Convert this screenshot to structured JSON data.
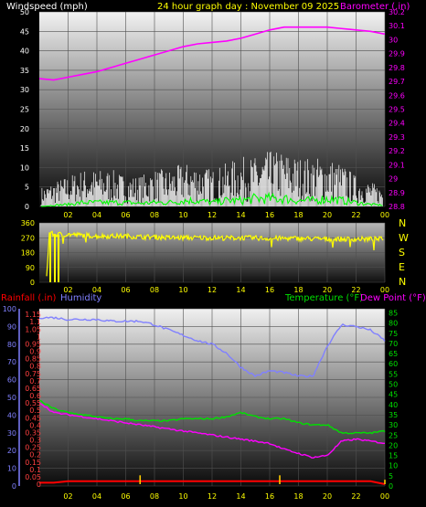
{
  "colors": {
    "windspeed": "#ffffff",
    "gust": "#00ff00",
    "barometer": "#ff00ff",
    "wind_dir": "#ffff00",
    "humidity": "#8080ff",
    "temperature": "#00e000",
    "dewpoint": "#ff00ff",
    "rainfall": "#ff0000",
    "rain_rate": "#ffcc00",
    "title": "#ffff00"
  },
  "title": "24 hour graph day : November 09 2025",
  "xticks": [
    "02",
    "04",
    "06",
    "08",
    "10",
    "12",
    "14",
    "16",
    "18",
    "20",
    "22",
    "00"
  ],
  "chart_data": [
    {
      "type": "line",
      "left_label": "Windspeed (mph)",
      "right_label": "Barometer (.in)",
      "left_ticks": [
        "0",
        "5",
        "10",
        "15",
        "20",
        "25",
        "30",
        "35",
        "40",
        "45",
        "50"
      ],
      "right_ticks": [
        "28.8",
        "28.9",
        "29",
        "29.1",
        "29.2",
        "29.3",
        "29.4",
        "29.5",
        "29.6",
        "29.7",
        "29.8",
        "29.9",
        "30",
        "30.1",
        "30.2"
      ],
      "left_ylim": [
        0,
        50
      ],
      "right_ylim": [
        28.8,
        30.2
      ],
      "series": [
        {
          "axis": "right",
          "x": [
            0,
            1,
            2,
            3,
            4,
            5,
            6,
            7,
            8,
            9,
            10,
            11,
            12,
            13,
            14,
            15,
            16,
            17,
            18,
            19,
            20,
            21,
            22,
            23,
            24
          ],
          "values": [
            29.72,
            29.71,
            29.73,
            29.75,
            29.77,
            29.8,
            29.83,
            29.86,
            29.89,
            29.92,
            29.95,
            29.97,
            29.98,
            29.99,
            30.01,
            30.04,
            30.07,
            30.09,
            30.09,
            30.09,
            30.09,
            30.08,
            30.07,
            30.06,
            30.04
          ]
        },
        {
          "axis": "left",
          "style": "noise",
          "x": [
            0,
            1,
            2,
            3,
            4,
            5,
            6,
            7,
            8,
            9,
            10,
            11,
            12,
            13,
            14,
            15,
            16,
            17,
            18,
            19,
            20,
            21,
            22,
            23,
            24
          ],
          "values": [
            3,
            4,
            5,
            6,
            6,
            6,
            5,
            5,
            6,
            6,
            7,
            7,
            6,
            7,
            8,
            8,
            9,
            9,
            8,
            8,
            8,
            7,
            5,
            4,
            3
          ]
        },
        {
          "axis": "left",
          "style": "noise",
          "x": [
            0,
            1,
            2,
            3,
            4,
            5,
            6,
            7,
            8,
            9,
            10,
            11,
            12,
            13,
            14,
            15,
            16,
            17,
            18,
            19,
            20,
            21,
            22,
            23,
            24
          ],
          "values": [
            0,
            0.3,
            0.5,
            1,
            1,
            1,
            1,
            0.8,
            1,
            1,
            1.5,
            1.5,
            1,
            1.5,
            1.5,
            2,
            2,
            2,
            1.5,
            1.5,
            2,
            1.5,
            1,
            0.5,
            0.3
          ]
        }
      ]
    },
    {
      "type": "scatter",
      "right_label": "N W S E N",
      "compass": [
        "N",
        "W",
        "S",
        "E",
        "N"
      ],
      "ticks": [
        "0",
        "90",
        "180",
        "270",
        "360"
      ],
      "ylim": [
        0,
        360
      ],
      "x": [
        0,
        0.3,
        0.5,
        0.7,
        1,
        2,
        3,
        4,
        5,
        6,
        7,
        8,
        9,
        10,
        11,
        12,
        13,
        14,
        15,
        16,
        17,
        18,
        19,
        20,
        21,
        22,
        23,
        24
      ],
      "values": [
        0,
        270,
        20,
        300,
        290,
        290,
        285,
        280,
        280,
        280,
        275,
        275,
        270,
        270,
        270,
        270,
        268,
        270,
        268,
        266,
        266,
        266,
        264,
        262,
        262,
        262,
        262,
        262
      ]
    },
    {
      "type": "line",
      "labels": [
        "Rainfall (.in)",
        "Humidity",
        "Temperature (°F)",
        "Dew Point (°F)"
      ],
      "humidity_ticks": [
        "0",
        "10",
        "20",
        "30",
        "40",
        "50",
        "60",
        "70",
        "80",
        "90",
        "100"
      ],
      "rain_ticks": [
        "0",
        "0.05",
        "0.1",
        "0.15",
        "0.2",
        "0.25",
        "0.3",
        "0.35",
        "0.4",
        "0.45",
        "0.5",
        "0.55",
        "0.6",
        "0.65",
        "0.7",
        "0.75",
        "0.8",
        "0.85",
        "0.9",
        "0.95",
        "1",
        "1.05",
        "1.1",
        "1.15"
      ],
      "temp_ticks": [
        "0",
        "5",
        "10",
        "15",
        "20",
        "25",
        "30",
        "35",
        "40",
        "45",
        "50",
        "55",
        "60",
        "65",
        "70",
        "75",
        "80",
        "85"
      ],
      "humidity_ylim": [
        0,
        100
      ],
      "temp_ylim": [
        0,
        87
      ],
      "series": [
        {
          "name": "Humidity",
          "axis": "humidity",
          "x": [
            0,
            1,
            2,
            3,
            4,
            5,
            6,
            7,
            8,
            9,
            10,
            11,
            12,
            13,
            14,
            15,
            16,
            17,
            18,
            19,
            20,
            21,
            22,
            23,
            24
          ],
          "values": [
            95,
            95,
            94,
            94,
            94,
            93,
            93,
            93,
            91,
            88,
            85,
            82,
            80,
            75,
            67,
            62,
            65,
            64,
            62,
            62,
            79,
            91,
            90,
            88,
            82
          ]
        },
        {
          "name": "Temperature",
          "axis": "temp",
          "x": [
            0,
            1,
            2,
            3,
            4,
            5,
            6,
            7,
            8,
            9,
            10,
            11,
            12,
            13,
            14,
            15,
            16,
            17,
            18,
            19,
            20,
            21,
            22,
            23,
            24
          ],
          "values": [
            42,
            38,
            36,
            35,
            34,
            33,
            33,
            32,
            32,
            32,
            33,
            33,
            33,
            34,
            36,
            34,
            33,
            33,
            31,
            30,
            30,
            26,
            26,
            26,
            27
          ]
        },
        {
          "name": "Dew Point",
          "axis": "temp",
          "x": [
            0,
            1,
            2,
            3,
            4,
            5,
            6,
            7,
            8,
            9,
            10,
            11,
            12,
            13,
            14,
            15,
            16,
            17,
            18,
            19,
            20,
            21,
            22,
            23,
            24
          ],
          "values": [
            41,
            36,
            35,
            34,
            33,
            32,
            31,
            30,
            29,
            28,
            27,
            26,
            25,
            24,
            23,
            22,
            21,
            18,
            16,
            14,
            15,
            22,
            23,
            22,
            21
          ]
        },
        {
          "name": "Rainfall",
          "axis": "rain",
          "x": [
            0,
            1,
            2,
            3,
            4,
            5,
            6,
            7,
            8,
            9,
            10,
            11,
            12,
            13,
            14,
            15,
            16,
            17,
            18,
            19,
            20,
            21,
            22,
            23,
            24
          ],
          "values": [
            0.01,
            0.01,
            0.02,
            0.02,
            0.02,
            0.02,
            0.02,
            0.02,
            0.02,
            0.02,
            0.02,
            0.02,
            0.02,
            0.02,
            0.02,
            0.02,
            0.02,
            0.02,
            0.02,
            0.02,
            0.02,
            0.02,
            0.02,
            0.02,
            0.0
          ]
        },
        {
          "name": "Rain rate",
          "axis": "rain",
          "style": "bars",
          "x": [
            7,
            16.7,
            24
          ],
          "values": [
            0.06,
            0.06,
            0.03
          ]
        }
      ]
    }
  ]
}
